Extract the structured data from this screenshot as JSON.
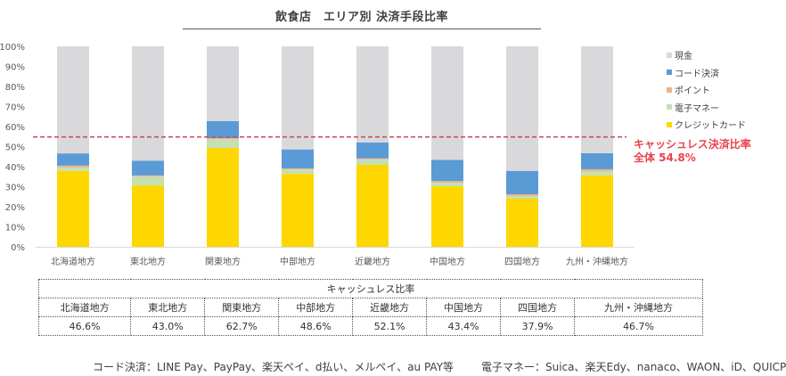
{
  "chart_data": {
    "type": "bar",
    "stacked": true,
    "title": "飲食店　エリア別 決済手段比率",
    "xlabel": "",
    "ylabel": "",
    "ylim": [
      0,
      100
    ],
    "yticks": [
      "0%",
      "10%",
      "20%",
      "30%",
      "40%",
      "50%",
      "60%",
      "70%",
      "80%",
      "90%",
      "100%"
    ],
    "categories": [
      "北海道地方",
      "東北地方",
      "関東地方",
      "中部地方",
      "近畿地方",
      "中国地方",
      "四国地方",
      "九州・沖縄地方"
    ],
    "series": [
      {
        "name": "クレジットカード",
        "color": "#ffd700",
        "values": [
          37.8,
          30.7,
          49.3,
          36.4,
          40.9,
          30.2,
          24.0,
          35.6
        ]
      },
      {
        "name": "電子マネー",
        "color": "#c5e0b4",
        "values": [
          1.8,
          4.4,
          4.4,
          2.2,
          2.7,
          1.8,
          1.3,
          2.2
        ]
      },
      {
        "name": "ポイント",
        "color": "#f4b183",
        "values": [
          0.9,
          0.5,
          0.5,
          0.5,
          0.5,
          0.8,
          0.9,
          0.9
        ]
      },
      {
        "name": "コード決済",
        "color": "#5b9bd5",
        "values": [
          6.1,
          7.4,
          8.5,
          9.5,
          8.0,
          10.6,
          11.7,
          8.0
        ]
      },
      {
        "name": "現金",
        "color": "#d9d9dc",
        "values": [
          53.4,
          57.0,
          37.3,
          51.4,
          47.9,
          56.6,
          62.1,
          53.3
        ]
      }
    ],
    "legend_order": [
      "現金",
      "コード決済",
      "ポイント",
      "電子マネー",
      "クレジットカード"
    ],
    "legend_position": "right",
    "reference_line": {
      "value": 54.8,
      "color": "#c9515f",
      "style": "dashed",
      "label_line1": "キャッシュレス決済比率",
      "label_line2": "全体 54.8%"
    },
    "grid": false
  },
  "table": {
    "header": "キャッシュレス比率",
    "regions": [
      "北海道地方",
      "東北地方",
      "関東地方",
      "中部地方",
      "近畿地方",
      "中国地方",
      "四国地方",
      "九州・沖縄地方"
    ],
    "values": [
      "46.6%",
      "43.0%",
      "62.7%",
      "48.6%",
      "52.1%",
      "43.4%",
      "37.9%",
      "46.7%"
    ]
  },
  "footnotes": {
    "code": "コード決済：LINE Pay、PayPay、楽天ペイ、d払い、メルペイ、au PAY等",
    "emoney": "電子マネー：Suica、楽天Edy、nanaco、WAON、iD、QUICPay等"
  }
}
